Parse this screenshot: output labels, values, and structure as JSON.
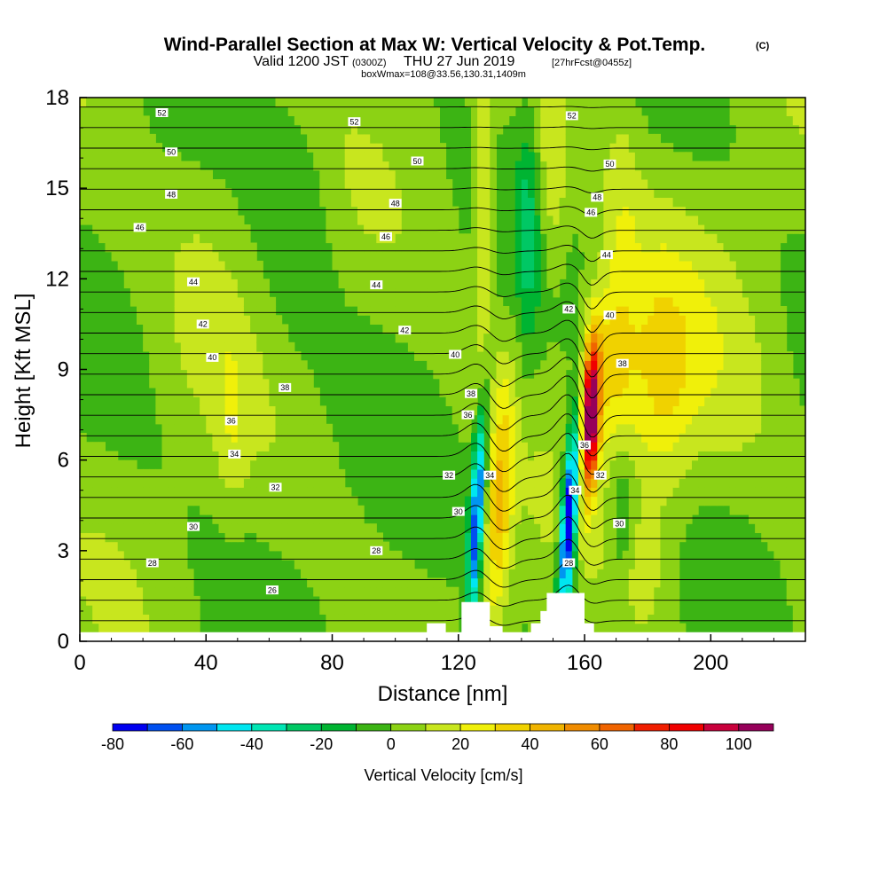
{
  "chart_data": {
    "type": "heatmap",
    "title": "Wind-Parallel Section at Max W: Vertical Velocity & Pot.Temp.",
    "title_suffix": "(C)",
    "subtitle": {
      "valid_prefix": "Valid 1200 JST",
      "zulu": "(0300Z)",
      "date": "THU 27 Jun 2019",
      "forecast": "[27hrFcst@0455z]"
    },
    "subtitle2": "boxWmax=108@33.56,130.31,1409m",
    "xlabel": "Distance [nm]",
    "ylabel": "Height [Kft MSL]",
    "xlim": [
      0,
      230
    ],
    "ylim": [
      0,
      18
    ],
    "x_ticks": [
      "0",
      "40",
      "80",
      "120",
      "160",
      "200"
    ],
    "x_tick_values": [
      0,
      40,
      80,
      120,
      160,
      200
    ],
    "y_ticks": [
      "0",
      "3",
      "6",
      "9",
      "12",
      "15",
      "18"
    ],
    "y_tick_values": [
      0,
      3,
      6,
      9,
      12,
      15,
      18
    ],
    "colorbar": {
      "title": "Vertical Velocity [cm/s]",
      "tick_labels": [
        "-80",
        "-60",
        "-40",
        "-20",
        "0",
        "20",
        "40",
        "60",
        "80",
        "100"
      ],
      "levels": [
        -80,
        -70,
        -60,
        -50,
        -40,
        -30,
        -20,
        -10,
        0,
        10,
        20,
        30,
        40,
        50,
        60,
        70,
        80,
        90,
        100,
        110
      ],
      "colors": [
        "#0000f0",
        "#0050f0",
        "#0096f0",
        "#00e6f0",
        "#00e6b4",
        "#00c864",
        "#00b432",
        "#3cb414",
        "#8cd214",
        "#c8e61e",
        "#f0f00a",
        "#f0d200",
        "#f0b400",
        "#f08c00",
        "#f06400",
        "#f01e00",
        "#f00000",
        "#c8003c",
        "#96005a"
      ]
    },
    "background_value_cm_s": 0,
    "terrain": [
      {
        "x": 104,
        "h": 0.3
      },
      {
        "x": 110,
        "h": 0.6
      },
      {
        "x": 116,
        "h": 0.3
      },
      {
        "x": 121,
        "h": 1.3
      },
      {
        "x": 128,
        "h": 1.3
      },
      {
        "x": 130,
        "h": 0.5
      },
      {
        "x": 134,
        "h": 0.3
      },
      {
        "x": 140,
        "h": 0.3
      },
      {
        "x": 143,
        "h": 0.6
      },
      {
        "x": 146,
        "h": 1.0
      },
      {
        "x": 148,
        "h": 1.6
      },
      {
        "x": 158,
        "h": 1.6
      },
      {
        "x": 160,
        "h": 0.6
      },
      {
        "x": 163,
        "h": 0.3
      }
    ],
    "vertical_velocity_features": [
      {
        "type": "downdraft",
        "x": 126,
        "z": 4.5,
        "peak_cm_s": -60
      },
      {
        "type": "updraft",
        "x": 133,
        "z": 4.5,
        "peak_cm_s": 40
      },
      {
        "type": "updraft",
        "x": 128,
        "z": 15,
        "peak_cm_s": 30
      },
      {
        "type": "downdraft",
        "x": 155,
        "z": 4.0,
        "peak_cm_s": -80
      },
      {
        "type": "updraft",
        "x": 162,
        "z": 7.5,
        "peak_cm_s": 108
      },
      {
        "type": "updraft",
        "x": 182,
        "z": 8.5,
        "peak_cm_s": 30
      },
      {
        "type": "updraft",
        "x": 152,
        "z": 15,
        "peak_cm_s": 20
      },
      {
        "type": "downdraft",
        "x": 142,
        "z": 14,
        "peak_cm_s": -20
      }
    ],
    "theta_contour_labels": [
      {
        "label": "26",
        "x": 61,
        "z": 1.7
      },
      {
        "label": "28",
        "x": 23,
        "z": 2.6
      },
      {
        "label": "28",
        "x": 94,
        "z": 3.0
      },
      {
        "label": "28",
        "x": 155,
        "z": 2.6
      },
      {
        "label": "30",
        "x": 36,
        "z": 3.8
      },
      {
        "label": "30",
        "x": 120,
        "z": 4.3
      },
      {
        "label": "30",
        "x": 171,
        "z": 3.9
      },
      {
        "label": "32",
        "x": 62,
        "z": 5.1
      },
      {
        "label": "32",
        "x": 117,
        "z": 5.5
      },
      {
        "label": "32",
        "x": 165,
        "z": 5.5
      },
      {
        "label": "34",
        "x": 49,
        "z": 6.2
      },
      {
        "label": "34",
        "x": 130,
        "z": 5.5
      },
      {
        "label": "34",
        "x": 157,
        "z": 5.0
      },
      {
        "label": "36",
        "x": 48,
        "z": 7.3
      },
      {
        "label": "36",
        "x": 123,
        "z": 7.5
      },
      {
        "label": "36",
        "x": 160,
        "z": 6.5
      },
      {
        "label": "38",
        "x": 65,
        "z": 8.4
      },
      {
        "label": "38",
        "x": 124,
        "z": 8.2
      },
      {
        "label": "38",
        "x": 172,
        "z": 9.2
      },
      {
        "label": "40",
        "x": 42,
        "z": 9.4
      },
      {
        "label": "40",
        "x": 119,
        "z": 9.5
      },
      {
        "label": "40",
        "x": 168,
        "z": 10.8
      },
      {
        "label": "42",
        "x": 39,
        "z": 10.5
      },
      {
        "label": "42",
        "x": 103,
        "z": 10.3
      },
      {
        "label": "42",
        "x": 155,
        "z": 11.0
      },
      {
        "label": "44",
        "x": 36,
        "z": 11.9
      },
      {
        "label": "44",
        "x": 94,
        "z": 11.8
      },
      {
        "label": "44",
        "x": 167,
        "z": 12.8
      },
      {
        "label": "46",
        "x": 19,
        "z": 13.7
      },
      {
        "label": "46",
        "x": 97,
        "z": 13.4
      },
      {
        "label": "46",
        "x": 162,
        "z": 14.2
      },
      {
        "label": "48",
        "x": 29,
        "z": 14.8
      },
      {
        "label": "48",
        "x": 100,
        "z": 14.5
      },
      {
        "label": "48",
        "x": 164,
        "z": 14.7
      },
      {
        "label": "50",
        "x": 29,
        "z": 16.2
      },
      {
        "label": "50",
        "x": 107,
        "z": 15.9
      },
      {
        "label": "50",
        "x": 168,
        "z": 15.8
      },
      {
        "label": "52",
        "x": 26,
        "z": 17.5
      },
      {
        "label": "52",
        "x": 87,
        "z": 17.2
      },
      {
        "label": "52",
        "x": 156,
        "z": 17.4
      }
    ],
    "theta_range_c": [
      26,
      52
    ],
    "grid": false,
    "legend": "bottom"
  }
}
